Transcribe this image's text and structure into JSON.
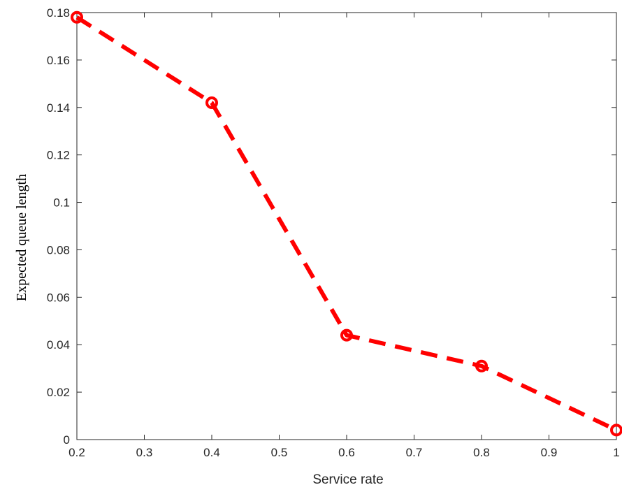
{
  "chart_data": {
    "type": "line",
    "title": "",
    "xlabel": "Service rate",
    "ylabel": "Expected queue length",
    "xlim": [
      0.2,
      1
    ],
    "ylim": [
      0,
      0.18
    ],
    "xticks": [
      "0.2",
      "0.3",
      "0.4",
      "0.5",
      "0.6",
      "0.7",
      "0.8",
      "0.9",
      "1"
    ],
    "yticks": [
      "0",
      "0.02",
      "0.04",
      "0.06",
      "0.08",
      "0.1",
      "0.12",
      "0.14",
      "0.16",
      "0.18"
    ],
    "grid": false,
    "series": [
      {
        "x": [
          0.2,
          0.4,
          0.6,
          0.8,
          1.0
        ],
        "y": [
          0.178,
          0.142,
          0.044,
          0.031,
          0.004
        ],
        "color": "#ff0000",
        "line_style": "dashed",
        "marker": "circle"
      }
    ]
  }
}
